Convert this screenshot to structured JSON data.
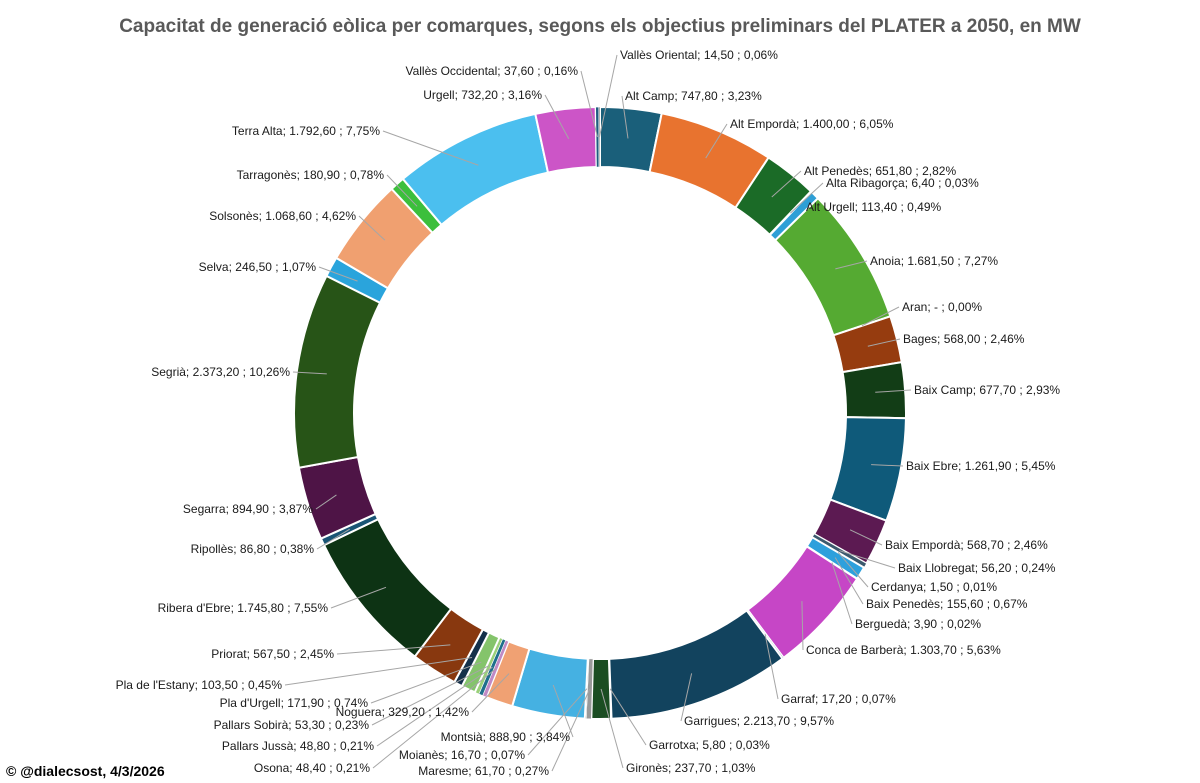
{
  "chart_data": {
    "type": "pie",
    "variant": "doughnut",
    "title": "Capacitat de generació eòlica per comarques, segons els objectius preliminars del PLATER a 2050, en MW",
    "credit": "© @dialecsost, 4/3/2026",
    "label_sep": ";",
    "slices": [
      {
        "name": "Alt Camp",
        "value_text": "747,80",
        "pct_text": "3,23%",
        "value": 747.8,
        "color": "#1a5f7a"
      },
      {
        "name": "Alt Empordà",
        "value_text": "1.400,00",
        "pct_text": "6,05%",
        "value": 1400.0,
        "color": "#e8732f"
      },
      {
        "name": "Alt Penedès",
        "value_text": "651,80",
        "pct_text": "2,82%",
        "value": 651.8,
        "color": "#1b6b27"
      },
      {
        "name": "Alta Ribagorça",
        "value_text": "6,40",
        "pct_text": "0,03%",
        "value": 6.4,
        "color": "#5b9bd5"
      },
      {
        "name": "Alt Urgell",
        "value_text": "113,40",
        "pct_text": "0,49%",
        "value": 113.4,
        "color": "#2e9fd6"
      },
      {
        "name": "Anoia",
        "value_text": "1.681,50",
        "pct_text": "7,27%",
        "value": 1681.5,
        "color": "#55aa32"
      },
      {
        "name": "Aran",
        "value_text": "-",
        "pct_text": "0,00%",
        "value": 0,
        "color": "#888888"
      },
      {
        "name": "Bages",
        "value_text": "568,00",
        "pct_text": "2,46%",
        "value": 568.0,
        "color": "#963c0f"
      },
      {
        "name": "Baix Camp",
        "value_text": "677,70",
        "pct_text": "2,93%",
        "value": 677.7,
        "color": "#123d16"
      },
      {
        "name": "Baix Ebre",
        "value_text": "1.261,90",
        "pct_text": "5,45%",
        "value": 1261.9,
        "color": "#0f5a7a"
      },
      {
        "name": "Baix Empordà",
        "value_text": "568,70",
        "pct_text": "2,46%",
        "value": 568.7,
        "color": "#5c1a52"
      },
      {
        "name": "Baix Llobregat",
        "value_text": "56,20",
        "pct_text": "0,24%",
        "value": 56.2,
        "color": "#3c5a6e"
      },
      {
        "name": "Cerdanya",
        "value_text": "1,50",
        "pct_text": "0,01%",
        "value": 1.5,
        "color": "#777777"
      },
      {
        "name": "Baix Penedès",
        "value_text": "155,60",
        "pct_text": "0,67%",
        "value": 155.6,
        "color": "#2ea0dc"
      },
      {
        "name": "Berguedà",
        "value_text": "3,90",
        "pct_text": "0,02%",
        "value": 3.9,
        "color": "#888888"
      },
      {
        "name": "Conca de Barberà",
        "value_text": "1.303,70",
        "pct_text": "5,63%",
        "value": 1303.7,
        "color": "#c646c6"
      },
      {
        "name": "Garraf",
        "value_text": "17,20",
        "pct_text": "0,07%",
        "value": 17.2,
        "color": "#2a6c8a"
      },
      {
        "name": "Garrigues",
        "value_text": "2.213,70",
        "pct_text": "9,57%",
        "value": 2213.7,
        "color": "#12435e"
      },
      {
        "name": "Garrotxa",
        "value_text": "5,80",
        "pct_text": "0,03%",
        "value": 5.8,
        "color": "#2e7d32"
      },
      {
        "name": "Gironès",
        "value_text": "237,70",
        "pct_text": "1,03%",
        "value": 237.7,
        "color": "#1b4d22"
      },
      {
        "name": "Maresme",
        "value_text": "61,70",
        "pct_text": "0,27%",
        "value": 61.7,
        "color": "#9a9a9a"
      },
      {
        "name": "Moianès",
        "value_text": "16,70",
        "pct_text": "0,07%",
        "value": 16.7,
        "color": "#5a5a5a"
      },
      {
        "name": "Montsià",
        "value_text": "888,90",
        "pct_text": "3,84%",
        "value": 888.9,
        "color": "#45b1e2"
      },
      {
        "name": "Noguera",
        "value_text": "329,20",
        "pct_text": "1,42%",
        "value": 329.2,
        "color": "#f0a173"
      },
      {
        "name": "Osona",
        "value_text": "48,40",
        "pct_text": "0,21%",
        "value": 48.4,
        "color": "#c08ac5"
      },
      {
        "name": "Pallars Jussà",
        "value_text": "48,80",
        "pct_text": "0,21%",
        "value": 48.8,
        "color": "#1f6e8c"
      },
      {
        "name": "Pallars Sobirà",
        "value_text": "53,30",
        "pct_text": "0,23%",
        "value": 53.3,
        "color": "#9ad07a"
      },
      {
        "name": "Pla d'Urgell",
        "value_text": "171,90",
        "pct_text": "0,74%",
        "value": 171.9,
        "color": "#84c46b"
      },
      {
        "name": "Pla de l'Estany",
        "value_text": "103,50",
        "pct_text": "0,45%",
        "value": 103.5,
        "color": "#14304a"
      },
      {
        "name": "Priorat",
        "value_text": "567,50",
        "pct_text": "2,45%",
        "value": 567.5,
        "color": "#88380f"
      },
      {
        "name": "Ribera d'Ebre",
        "value_text": "1.745,80",
        "pct_text": "7,55%",
        "value": 1745.8,
        "color": "#0d3314"
      },
      {
        "name": "Ripollès",
        "value_text": "86,80",
        "pct_text": "0,38%",
        "value": 86.8,
        "color": "#1a5575"
      },
      {
        "name": "Segarra",
        "value_text": "894,90",
        "pct_text": "3,87%",
        "value": 894.9,
        "color": "#4e1446"
      },
      {
        "name": "Segrià",
        "value_text": "2.373,20",
        "pct_text": "10,26%",
        "value": 2373.2,
        "color": "#275417"
      },
      {
        "name": "Selva",
        "value_text": "246,50",
        "pct_text": "1,07%",
        "value": 246.5,
        "color": "#2aa4dc"
      },
      {
        "name": "Solsonès",
        "value_text": "1.068,60",
        "pct_text": "4,62%",
        "value": 1068.6,
        "color": "#f0a070"
      },
      {
        "name": "Tarragonès",
        "value_text": "180,90",
        "pct_text": "0,78%",
        "value": 180.9,
        "color": "#3cbf3c"
      },
      {
        "name": "Terra Alta",
        "value_text": "1.792,60",
        "pct_text": "7,75%",
        "value": 1792.6,
        "color": "#4bbfef"
      },
      {
        "name": "Urgell",
        "value_text": "732,20",
        "pct_text": "3,16%",
        "value": 732.2,
        "color": "#cc55c7"
      },
      {
        "name": "Vallès Occidental",
        "value_text": "37,60",
        "pct_text": "0,16%",
        "value": 37.6,
        "color": "#1f5d80"
      },
      {
        "name": "Vallès Oriental",
        "value_text": "14,50",
        "pct_text": "0,06%",
        "value": 14.5,
        "color": "#7a7a7a"
      }
    ]
  }
}
